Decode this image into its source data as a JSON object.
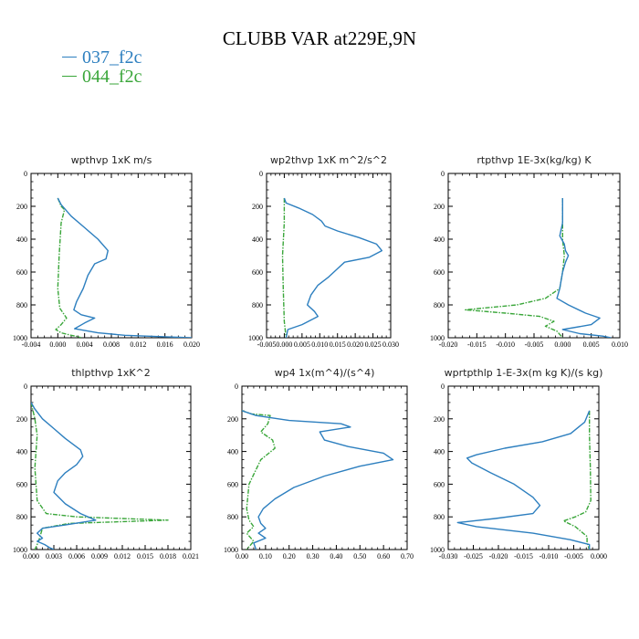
{
  "title": "CLUBB VAR at229E,9N",
  "legend": [
    {
      "name": "037_f2c",
      "color": "#2d7fbf"
    },
    {
      "name": "044_f2c",
      "color": "#3aa63a"
    }
  ],
  "chart_data": [
    {
      "type": "line",
      "title": "wpthvp  1xK m/s",
      "xlim": [
        -0.004,
        0.02
      ],
      "xticks": [
        "-0.004",
        "0.000",
        "0.004",
        "0.008",
        "0.012",
        "0.016",
        "0.020"
      ],
      "ylim": [
        1000,
        0
      ],
      "yticks": [
        "0",
        "200",
        "400",
        "600",
        "800",
        "1000"
      ],
      "series": [
        {
          "name": "037_f2c",
          "points": [
            [
              0.0,
              150
            ],
            [
              0.0005,
              190
            ],
            [
              0.002,
              260
            ],
            [
              0.004,
              330
            ],
            [
              0.006,
              400
            ],
            [
              0.0075,
              470
            ],
            [
              0.0072,
              520
            ],
            [
              0.0055,
              550
            ],
            [
              0.0045,
              620
            ],
            [
              0.0038,
              700
            ],
            [
              0.0028,
              780
            ],
            [
              0.0024,
              830
            ],
            [
              0.0035,
              860
            ],
            [
              0.0055,
              880
            ],
            [
              0.004,
              910
            ],
            [
              0.0025,
              945
            ],
            [
              0.006,
              970
            ],
            [
              0.01,
              985
            ],
            [
              0.016,
              994
            ],
            [
              0.02,
              1000
            ]
          ]
        },
        {
          "name": "044_f2c",
          "points": [
            [
              0.0,
              150
            ],
            [
              0.0005,
              200
            ],
            [
              0.001,
              220
            ],
            [
              0.0005,
              300
            ],
            [
              0.0002,
              500
            ],
            [
              0.0,
              700
            ],
            [
              0.0003,
              820
            ],
            [
              0.0013,
              880
            ],
            [
              0.0005,
              920
            ],
            [
              -0.0003,
              950
            ],
            [
              0.0005,
              970
            ],
            [
              0.002,
              985
            ],
            [
              0.003,
              993
            ],
            [
              0.0035,
              1000
            ]
          ]
        }
      ]
    },
    {
      "type": "line",
      "title": "wp2thvp  1xK m^2/s^2",
      "xlim": [
        -0.005,
        0.03
      ],
      "xticks": [
        "-0.005",
        "0.000",
        "0.005",
        "0.010",
        "0.015",
        "0.020",
        "0.025",
        "0.030"
      ],
      "ylim": [
        1000,
        0
      ],
      "yticks": [
        "0",
        "200",
        "400",
        "600",
        "800",
        "1000"
      ],
      "series": [
        {
          "name": "037_f2c",
          "points": [
            [
              0.0,
              150
            ],
            [
              0.0005,
              180
            ],
            [
              0.004,
              210
            ],
            [
              0.008,
              250
            ],
            [
              0.0105,
              290
            ],
            [
              0.0115,
              320
            ],
            [
              0.015,
              350
            ],
            [
              0.021,
              390
            ],
            [
              0.026,
              430
            ],
            [
              0.0275,
              470
            ],
            [
              0.024,
              510
            ],
            [
              0.017,
              540
            ],
            [
              0.015,
              580
            ],
            [
              0.0125,
              630
            ],
            [
              0.0095,
              680
            ],
            [
              0.0075,
              740
            ],
            [
              0.0065,
              800
            ],
            [
              0.0085,
              840
            ],
            [
              0.0095,
              870
            ],
            [
              0.005,
              920
            ],
            [
              0.001,
              950
            ],
            [
              0.0005,
              1000
            ]
          ]
        },
        {
          "name": "044_f2c",
          "points": [
            [
              0.0,
              150
            ],
            [
              0.0,
              300
            ],
            [
              -0.0005,
              500
            ],
            [
              -0.0003,
              700
            ],
            [
              0.0,
              900
            ],
            [
              0.0005,
              1000
            ]
          ]
        }
      ]
    },
    {
      "type": "line",
      "title": "rtpthvp  1E-3x(kg/kg) K",
      "xlim": [
        -0.02,
        0.01
      ],
      "xticks": [
        "-0.020",
        "-0.015",
        "-0.010",
        "-0.005",
        "0.000",
        "0.005",
        "0.010"
      ],
      "ylim": [
        1000,
        0
      ],
      "yticks": [
        "0",
        "200",
        "400",
        "600",
        "800",
        "1000"
      ],
      "series": [
        {
          "name": "037_f2c",
          "points": [
            [
              0.0,
              150
            ],
            [
              0.0,
              300
            ],
            [
              -0.0005,
              380
            ],
            [
              0.0003,
              430
            ],
            [
              0.0005,
              470
            ],
            [
              0.001,
              500
            ],
            [
              0.0005,
              540
            ],
            [
              0.0,
              600
            ],
            [
              -0.0005,
              700
            ],
            [
              -0.001,
              760
            ],
            [
              0.001,
              800
            ],
            [
              0.004,
              850
            ],
            [
              0.0065,
              880
            ],
            [
              0.005,
              920
            ],
            [
              0.0,
              950
            ],
            [
              0.003,
              975
            ],
            [
              0.007,
              990
            ],
            [
              0.0085,
              1000
            ]
          ]
        },
        {
          "name": "044_f2c",
          "points": [
            [
              0.0,
              150
            ],
            [
              0.0,
              400
            ],
            [
              0.0003,
              500
            ],
            [
              0.0,
              600
            ],
            [
              -0.0005,
              700
            ],
            [
              -0.003,
              760
            ],
            [
              -0.008,
              800
            ],
            [
              -0.017,
              830
            ],
            [
              -0.01,
              850
            ],
            [
              -0.004,
              870
            ],
            [
              -0.0015,
              900
            ],
            [
              -0.003,
              930
            ],
            [
              -0.001,
              960
            ],
            [
              0.0,
              1000
            ]
          ]
        }
      ]
    },
    {
      "type": "line",
      "title": "thlpthvp  1xK^2",
      "xlim": [
        0.0,
        0.021
      ],
      "xticks": [
        "0.000",
        "0.003",
        "0.006",
        "0.009",
        "0.012",
        "0.015",
        "0.018",
        "0.021"
      ],
      "ylim": [
        1000,
        0
      ],
      "yticks": [
        "0",
        "200",
        "400",
        "600",
        "800",
        "1000"
      ],
      "series": [
        {
          "name": "037_f2c",
          "points": [
            [
              0.0,
              100
            ],
            [
              0.0005,
              140
            ],
            [
              0.0015,
              200
            ],
            [
              0.003,
              260
            ],
            [
              0.0045,
              320
            ],
            [
              0.0065,
              390
            ],
            [
              0.0068,
              430
            ],
            [
              0.006,
              480
            ],
            [
              0.0045,
              530
            ],
            [
              0.0035,
              580
            ],
            [
              0.003,
              650
            ],
            [
              0.0045,
              720
            ],
            [
              0.0065,
              780
            ],
            [
              0.0085,
              820
            ],
            [
              0.0045,
              850
            ],
            [
              0.0015,
              870
            ],
            [
              0.0008,
              900
            ],
            [
              0.0015,
              930
            ],
            [
              0.0008,
              950
            ],
            [
              0.0018,
              970
            ],
            [
              0.0025,
              990
            ],
            [
              0.003,
              1000
            ]
          ]
        },
        {
          "name": "044_f2c",
          "points": [
            [
              0.0,
              100
            ],
            [
              0.0005,
              200
            ],
            [
              0.0008,
              300
            ],
            [
              0.0005,
              500
            ],
            [
              0.0008,
              700
            ],
            [
              0.002,
              780
            ],
            [
              0.006,
              800
            ],
            [
              0.018,
              820
            ],
            [
              0.005,
              840
            ],
            [
              0.0015,
              870
            ],
            [
              0.001,
              950
            ],
            [
              0.0005,
              1000
            ]
          ]
        }
      ]
    },
    {
      "type": "line",
      "title": "wp4  1x(m^4)/(s^4)",
      "xlim": [
        0.0,
        0.7
      ],
      "xticks": [
        "0.00",
        "0.10",
        "0.20",
        "0.30",
        "0.40",
        "0.50",
        "0.60",
        "0.70"
      ],
      "ylim": [
        1000,
        0
      ],
      "yticks": [
        "0",
        "200",
        "400",
        "600",
        "800",
        "1000"
      ],
      "series": [
        {
          "name": "037_f2c",
          "points": [
            [
              0.0,
              150
            ],
            [
              0.06,
              180
            ],
            [
              0.2,
              210
            ],
            [
              0.42,
              230
            ],
            [
              0.46,
              250
            ],
            [
              0.33,
              280
            ],
            [
              0.35,
              330
            ],
            [
              0.45,
              370
            ],
            [
              0.6,
              410
            ],
            [
              0.64,
              450
            ],
            [
              0.5,
              490
            ],
            [
              0.35,
              550
            ],
            [
              0.22,
              620
            ],
            [
              0.14,
              690
            ],
            [
              0.09,
              750
            ],
            [
              0.07,
              800
            ],
            [
              0.08,
              840
            ],
            [
              0.1,
              870
            ],
            [
              0.07,
              900
            ],
            [
              0.1,
              930
            ],
            [
              0.05,
              960
            ],
            [
              0.06,
              1000
            ]
          ]
        },
        {
          "name": "044_f2c",
          "points": [
            [
              0.0,
              150
            ],
            [
              0.04,
              170
            ],
            [
              0.12,
              180
            ],
            [
              0.11,
              230
            ],
            [
              0.08,
              280
            ],
            [
              0.13,
              330
            ],
            [
              0.14,
              380
            ],
            [
              0.08,
              450
            ],
            [
              0.03,
              600
            ],
            [
              0.02,
              750
            ],
            [
              0.03,
              820
            ],
            [
              0.05,
              860
            ],
            [
              0.02,
              900
            ],
            [
              0.05,
              950
            ],
            [
              0.02,
              1000
            ]
          ]
        }
      ]
    },
    {
      "type": "line",
      "title": "wprtpthlp  1-E-3x(m kg K)/(s kg)",
      "xlim": [
        -0.03,
        0.002
      ],
      "xticks": [
        "-0.030",
        "-0.025",
        "-0.020",
        "-0.015",
        "-0.010",
        "-0.005",
        "0.000"
      ],
      "ylim": [
        1000,
        0
      ],
      "yticks": [
        "0",
        "200",
        "400",
        "600",
        "800",
        "1000"
      ],
      "series": [
        {
          "name": "037_f2c",
          "points": [
            [
              0.0,
              150
            ],
            [
              -0.001,
              220
            ],
            [
              -0.004,
              290
            ],
            [
              -0.01,
              340
            ],
            [
              -0.018,
              380
            ],
            [
              -0.024,
              420
            ],
            [
              -0.026,
              440
            ],
            [
              -0.025,
              470
            ],
            [
              -0.021,
              530
            ],
            [
              -0.016,
              600
            ],
            [
              -0.012,
              680
            ],
            [
              -0.0105,
              730
            ],
            [
              -0.012,
              780
            ],
            [
              -0.02,
              810
            ],
            [
              -0.028,
              835
            ],
            [
              -0.024,
              860
            ],
            [
              -0.012,
              900
            ],
            [
              -0.004,
              940
            ],
            [
              0.0,
              970
            ],
            [
              0.0,
              1000
            ]
          ]
        },
        {
          "name": "044_f2c",
          "points": [
            [
              0.0,
              150
            ],
            [
              0.0,
              300
            ],
            [
              0.0002,
              500
            ],
            [
              0.0003,
              700
            ],
            [
              -0.0008,
              770
            ],
            [
              -0.003,
              800
            ],
            [
              -0.0055,
              825
            ],
            [
              -0.003,
              860
            ],
            [
              -0.0005,
              920
            ],
            [
              -0.0005,
              960
            ],
            [
              0.0,
              1000
            ]
          ]
        }
      ]
    }
  ]
}
